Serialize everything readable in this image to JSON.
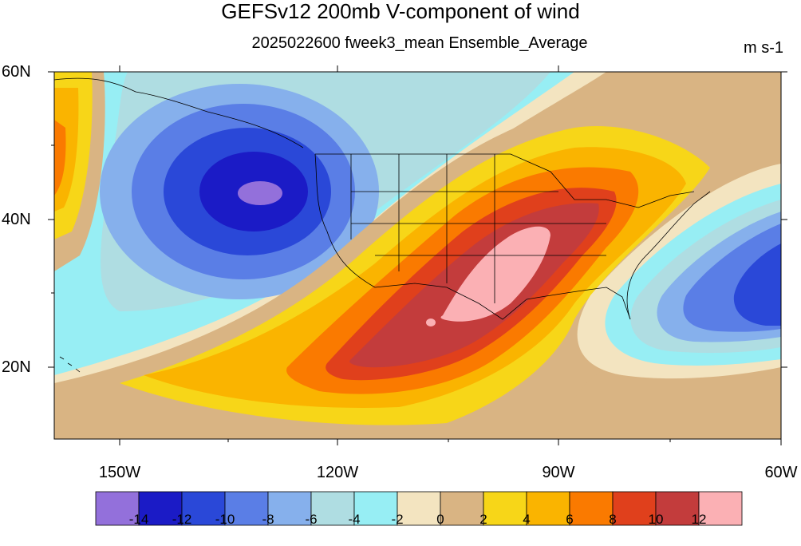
{
  "title": "GEFSv12 200mb V-component of wind",
  "subtitle": "2025022600 fweek3_mean Ensemble_Average",
  "units": "m s-1",
  "lat_labels": [
    "60N",
    "40N",
    "20N"
  ],
  "lon_labels": [
    "150W",
    "120W",
    "90W",
    "60W"
  ],
  "colorbar": {
    "levels": [
      "-14",
      "-12",
      "-10",
      "-8",
      "-6",
      "-4",
      "-2",
      "0",
      "2",
      "4",
      "6",
      "8",
      "10",
      "12"
    ],
    "colors": [
      "#9370db",
      "#1b1bc6",
      "#2a48d8",
      "#5a7ee6",
      "#86b0ec",
      "#afdde2",
      "#97eef4",
      "#f3e4c0",
      "#d9b483",
      "#f7d618",
      "#fab400",
      "#fa7a00",
      "#e0401c",
      "#c33c3c",
      "#fbb0b4"
    ]
  },
  "map": {
    "region": "North America / contiguous United States",
    "lat_range": [
      10,
      60
    ],
    "lon_range": [
      -160,
      -60
    ],
    "features": {
      "western_minimum": "near 44N 135W, below -14",
      "southern_maximum": "near 33N 98W, above 12",
      "eastern_minimum": "near 30N 61W, about -10"
    }
  }
}
